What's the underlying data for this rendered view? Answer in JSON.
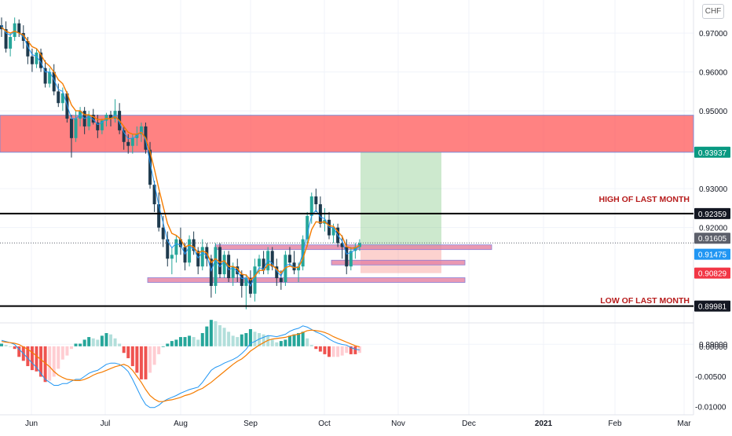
{
  "currency": "CHF",
  "annotations": {
    "high_label": "HIGH OF LAST MONTH",
    "low_label": "LOW OF LAST MONTH"
  },
  "price_badges": [
    {
      "value": "0.93937",
      "color": "#089981",
      "text_color": "#ffffff"
    },
    {
      "value": "0.92359",
      "color": "#131722",
      "text_color": "#ffffff"
    },
    {
      "value": "0.91605",
      "color": "#5d606b",
      "text_color": "#ffffff"
    },
    {
      "value": "0.91475",
      "color": "#2196f3",
      "text_color": "#ffffff"
    },
    {
      "value": "0.90829",
      "color": "#f23645",
      "text_color": "#ffffff"
    },
    {
      "value": "0.89981",
      "color": "#131722",
      "text_color": "#ffffff"
    }
  ],
  "colors": {
    "up": "#26a69a",
    "down": "#1e3a4d",
    "ema_orange": "#f57c00",
    "sma_blue": "#2196f3",
    "resistance_zone": "#ff5252",
    "target_zone": "#4caf50",
    "stop_zone": "#f44336",
    "support_bar": "#e57fa0"
  },
  "chart_data": {
    "type": "candlestick",
    "instrument_currency": "CHF",
    "x_tick_labels": [
      "Jun",
      "Jul",
      "Aug",
      "Sep",
      "Oct",
      "Nov",
      "Dec",
      "2021",
      "Feb",
      "Mar"
    ],
    "price_axis": {
      "ticks": [
        "0.97000",
        "0.96000",
        "0.95000",
        "0.93000",
        "0.92000",
        "0.90000",
        "0.89000"
      ],
      "range": [
        0.8955,
        0.9785
      ]
    },
    "levels": {
      "high_of_last_month": 0.92359,
      "low_of_last_month": 0.89981,
      "current_price": 0.91605,
      "take_profit": 0.93937,
      "entry": 0.91475,
      "stop": 0.90829
    },
    "zones": {
      "resistance": [
        0.93937,
        0.94887
      ],
      "target": [
        0.91475,
        0.93937
      ],
      "stop": [
        0.90829,
        0.91475
      ]
    },
    "ohlc": [
      [
        0.972,
        0.974,
        0.969,
        0.971
      ],
      [
        0.971,
        0.973,
        0.965,
        0.966
      ],
      [
        0.966,
        0.97,
        0.964,
        0.969
      ],
      [
        0.969,
        0.974,
        0.968,
        0.9725
      ],
      [
        0.9725,
        0.9735,
        0.969,
        0.97
      ],
      [
        0.97,
        0.972,
        0.966,
        0.968
      ],
      [
        0.968,
        0.969,
        0.962,
        0.964
      ],
      [
        0.964,
        0.966,
        0.96,
        0.962
      ],
      [
        0.962,
        0.966,
        0.961,
        0.965
      ],
      [
        0.965,
        0.966,
        0.96,
        0.961
      ],
      [
        0.961,
        0.963,
        0.956,
        0.957
      ],
      [
        0.957,
        0.961,
        0.956,
        0.96
      ],
      [
        0.96,
        0.962,
        0.954,
        0.955
      ],
      [
        0.955,
        0.957,
        0.951,
        0.952
      ],
      [
        0.952,
        0.956,
        0.95,
        0.9545
      ],
      [
        0.9545,
        0.955,
        0.947,
        0.948
      ],
      [
        0.948,
        0.949,
        0.938,
        0.943
      ],
      [
        0.943,
        0.95,
        0.942,
        0.948
      ],
      [
        0.948,
        0.951,
        0.946,
        0.95
      ],
      [
        0.95,
        0.951,
        0.944,
        0.946
      ],
      [
        0.946,
        0.95,
        0.945,
        0.949
      ],
      [
        0.949,
        0.9505,
        0.9465,
        0.947
      ],
      [
        0.947,
        0.949,
        0.943,
        0.945
      ],
      [
        0.945,
        0.948,
        0.944,
        0.9475
      ],
      [
        0.9475,
        0.9495,
        0.946,
        0.949
      ],
      [
        0.949,
        0.95,
        0.946,
        0.948
      ],
      [
        0.948,
        0.953,
        0.947,
        0.95
      ],
      [
        0.95,
        0.952,
        0.944,
        0.945
      ],
      [
        0.945,
        0.946,
        0.94,
        0.942
      ],
      [
        0.942,
        0.944,
        0.939,
        0.941
      ],
      [
        0.941,
        0.944,
        0.939,
        0.943
      ],
      [
        0.943,
        0.946,
        0.941,
        0.944
      ],
      [
        0.944,
        0.947,
        0.942,
        0.946
      ],
      [
        0.946,
        0.947,
        0.939,
        0.94
      ],
      [
        0.94,
        0.942,
        0.93,
        0.931
      ],
      [
        0.931,
        0.932,
        0.924,
        0.926
      ],
      [
        0.926,
        0.929,
        0.919,
        0.92
      ],
      [
        0.92,
        0.923,
        0.915,
        0.917
      ],
      [
        0.917,
        0.919,
        0.91,
        0.912
      ],
      [
        0.912,
        0.915,
        0.908,
        0.913
      ],
      [
        0.913,
        0.918,
        0.911,
        0.917
      ],
      [
        0.917,
        0.92,
        0.913,
        0.915
      ],
      [
        0.915,
        0.916,
        0.909,
        0.911
      ],
      [
        0.911,
        0.918,
        0.91,
        0.917
      ],
      [
        0.917,
        0.919,
        0.913,
        0.914
      ],
      [
        0.914,
        0.915,
        0.908,
        0.91
      ],
      [
        0.91,
        0.917,
        0.909,
        0.915
      ],
      [
        0.915,
        0.916,
        0.91,
        0.912
      ],
      [
        0.912,
        0.913,
        0.902,
        0.905
      ],
      [
        0.905,
        0.916,
        0.903,
        0.915
      ],
      [
        0.915,
        0.916,
        0.907,
        0.908
      ],
      [
        0.908,
        0.914,
        0.907,
        0.913
      ],
      [
        0.913,
        0.914,
        0.906,
        0.907
      ],
      [
        0.907,
        0.911,
        0.905,
        0.91
      ],
      [
        0.91,
        0.912,
        0.906,
        0.908
      ],
      [
        0.908,
        0.909,
        0.902,
        0.905
      ],
      [
        0.905,
        0.908,
        0.899,
        0.907
      ],
      [
        0.907,
        0.909,
        0.902,
        0.903
      ],
      [
        0.903,
        0.912,
        0.901,
        0.91
      ],
      [
        0.91,
        0.913,
        0.908,
        0.912
      ],
      [
        0.912,
        0.914,
        0.908,
        0.909
      ],
      [
        0.909,
        0.915,
        0.908,
        0.914
      ],
      [
        0.914,
        0.915,
        0.909,
        0.91
      ],
      [
        0.91,
        0.912,
        0.905,
        0.907
      ],
      [
        0.907,
        0.909,
        0.904,
        0.906
      ],
      [
        0.906,
        0.914,
        0.905,
        0.913
      ],
      [
        0.913,
        0.915,
        0.91,
        0.911
      ],
      [
        0.911,
        0.914,
        0.908,
        0.909
      ],
      [
        0.909,
        0.911,
        0.906,
        0.91
      ],
      [
        0.91,
        0.918,
        0.909,
        0.917
      ],
      [
        0.917,
        0.924,
        0.915,
        0.923
      ],
      [
        0.923,
        0.929,
        0.921,
        0.928
      ],
      [
        0.928,
        0.93,
        0.924,
        0.926
      ],
      [
        0.926,
        0.928,
        0.92,
        0.921
      ],
      [
        0.921,
        0.925,
        0.919,
        0.922
      ],
      [
        0.922,
        0.924,
        0.917,
        0.918
      ],
      [
        0.918,
        0.921,
        0.916,
        0.92
      ],
      [
        0.92,
        0.921,
        0.915,
        0.916
      ],
      [
        0.916,
        0.918,
        0.912,
        0.915
      ],
      [
        0.915,
        0.917,
        0.908,
        0.91
      ],
      [
        0.91,
        0.915,
        0.909,
        0.914
      ],
      [
        0.914,
        0.916,
        0.912,
        0.915
      ],
      [
        0.915,
        0.917,
        0.914,
        0.916
      ]
    ],
    "ema_orange": [
      0.9715,
      0.9705,
      0.97,
      0.9705,
      0.97,
      0.9695,
      0.968,
      0.9665,
      0.966,
      0.9645,
      0.9625,
      0.9615,
      0.96,
      0.958,
      0.957,
      0.9545,
      0.9515,
      0.95,
      0.95,
      0.949,
      0.949,
      0.9485,
      0.9478,
      0.9477,
      0.948,
      0.948,
      0.9485,
      0.9475,
      0.946,
      0.9445,
      0.944,
      0.944,
      0.9445,
      0.943,
      0.9395,
      0.935,
      0.93,
      0.9255,
      0.921,
      0.9185,
      0.918,
      0.917,
      0.915,
      0.9155,
      0.915,
      0.9135,
      0.914,
      0.9135,
      0.911,
      0.912,
      0.911,
      0.9115,
      0.91,
      0.91,
      0.9095,
      0.908,
      0.9078,
      0.9065,
      0.9075,
      0.909,
      0.909,
      0.9105,
      0.9103,
      0.9093,
      0.9083,
      0.9097,
      0.9101,
      0.9097,
      0.9098,
      0.912,
      0.9155,
      0.9195,
      0.9215,
      0.9213,
      0.9215,
      0.9205,
      0.9203,
      0.919,
      0.9177,
      0.9151,
      0.9147,
      0.9148,
      0.9154
    ],
    "sma_blue": [
      0.972,
      0.97,
      0.9695,
      0.9705,
      0.97,
      0.969,
      0.9665,
      0.9645,
      0.964,
      0.9625,
      0.96,
      0.96,
      0.958,
      0.9555,
      0.955,
      0.9515,
      0.948,
      0.948,
      0.949,
      0.948,
      0.9485,
      0.9478,
      0.9465,
      0.947,
      0.948,
      0.948,
      0.949,
      0.947,
      0.9445,
      0.9428,
      0.943,
      0.9435,
      0.9448,
      0.9424,
      0.9367,
      0.9313,
      0.9256,
      0.9213,
      0.9166,
      0.9148,
      0.9159,
      0.9155,
      0.9132,
      0.9151,
      0.9145,
      0.9122,
      0.9136,
      0.9128,
      0.9089,
      0.9119,
      0.9099,
      0.9115,
      0.9092,
      0.9096,
      0.9088,
      0.9069,
      0.907,
      0.905,
      0.9075,
      0.9097,
      0.9093,
      0.9117,
      0.9108,
      0.9089,
      0.9075,
      0.9102,
      0.9106,
      0.9098,
      0.9099,
      0.9135,
      0.9183,
      0.9231,
      0.9245,
      0.9227,
      0.9223,
      0.9201,
      0.92,
      0.918,
      0.9165,
      0.9132,
      0.9136,
      0.9143,
      0.9152
    ],
    "macd": {
      "range": [
        -0.0114,
        0.0039
      ],
      "ticks": [
        "0.00000",
        "-0.00500",
        "-0.01000"
      ],
      "macd_line": [
        0.001,
        0.0008,
        0.0006,
        0.0003,
        -0.0005,
        -0.0012,
        -0.002,
        -0.0028,
        -0.0035,
        -0.0045,
        -0.0055,
        -0.006,
        -0.0065,
        -0.0065,
        -0.0062,
        -0.0062,
        -0.0058,
        -0.0055,
        -0.0055,
        -0.005,
        -0.0045,
        -0.0042,
        -0.004,
        -0.0035,
        -0.003,
        -0.0028,
        -0.0028,
        -0.003,
        -0.0035,
        -0.0042,
        -0.0055,
        -0.007,
        -0.0085,
        -0.0097,
        -0.0102,
        -0.0102,
        -0.0098,
        -0.0092,
        -0.0088,
        -0.0085,
        -0.0082,
        -0.0078,
        -0.0075,
        -0.0072,
        -0.007,
        -0.0068,
        -0.006,
        -0.005,
        -0.004,
        -0.0035,
        -0.0032,
        -0.0028,
        -0.0025,
        -0.0022,
        -0.0018,
        -0.0012,
        -0.0005,
        0.0005,
        0.0008,
        0.0012,
        0.0015,
        0.0018,
        0.0017,
        0.0016,
        0.0018,
        0.002,
        0.0025,
        0.0028,
        0.003,
        0.0034,
        0.0032,
        0.0028,
        0.0024,
        0.0021,
        0.0017,
        0.0012,
        0.0008,
        0.0005,
        0.0003,
        0.0002,
        -0.0002,
        -0.0005,
        -0.0006
      ],
      "signal_line": [
        0.0008,
        0.0007,
        0.0006,
        0.0005,
        0.0003,
        -0.0001,
        -0.0005,
        -0.001,
        -0.0016,
        -0.0022,
        -0.0028,
        -0.0034,
        -0.0042,
        -0.0048,
        -0.0052,
        -0.0055,
        -0.0056,
        -0.0057,
        -0.0057,
        -0.0055,
        -0.0052,
        -0.0048,
        -0.0045,
        -0.0043,
        -0.004,
        -0.0037,
        -0.0034,
        -0.0032,
        -0.003,
        -0.0033,
        -0.004,
        -0.005,
        -0.006,
        -0.0072,
        -0.0082,
        -0.0088,
        -0.0092,
        -0.0092,
        -0.009,
        -0.0089,
        -0.0087,
        -0.0085,
        -0.0082,
        -0.008,
        -0.0077,
        -0.0073,
        -0.007,
        -0.0065,
        -0.006,
        -0.0054,
        -0.0048,
        -0.0042,
        -0.0036,
        -0.003,
        -0.0025,
        -0.0021,
        -0.0015,
        -0.0008,
        -0.0003,
        0.0002,
        0.0006,
        0.001,
        0.0012,
        0.0013,
        0.0014,
        0.0015,
        0.0017,
        0.0019,
        0.002,
        0.0023,
        0.0026,
        0.0027,
        0.0026,
        0.0025,
        0.0023,
        0.002,
        0.0016,
        0.0013,
        0.001,
        0.0007,
        0.0004,
        0.0001,
        -0.0001
      ]
    }
  }
}
